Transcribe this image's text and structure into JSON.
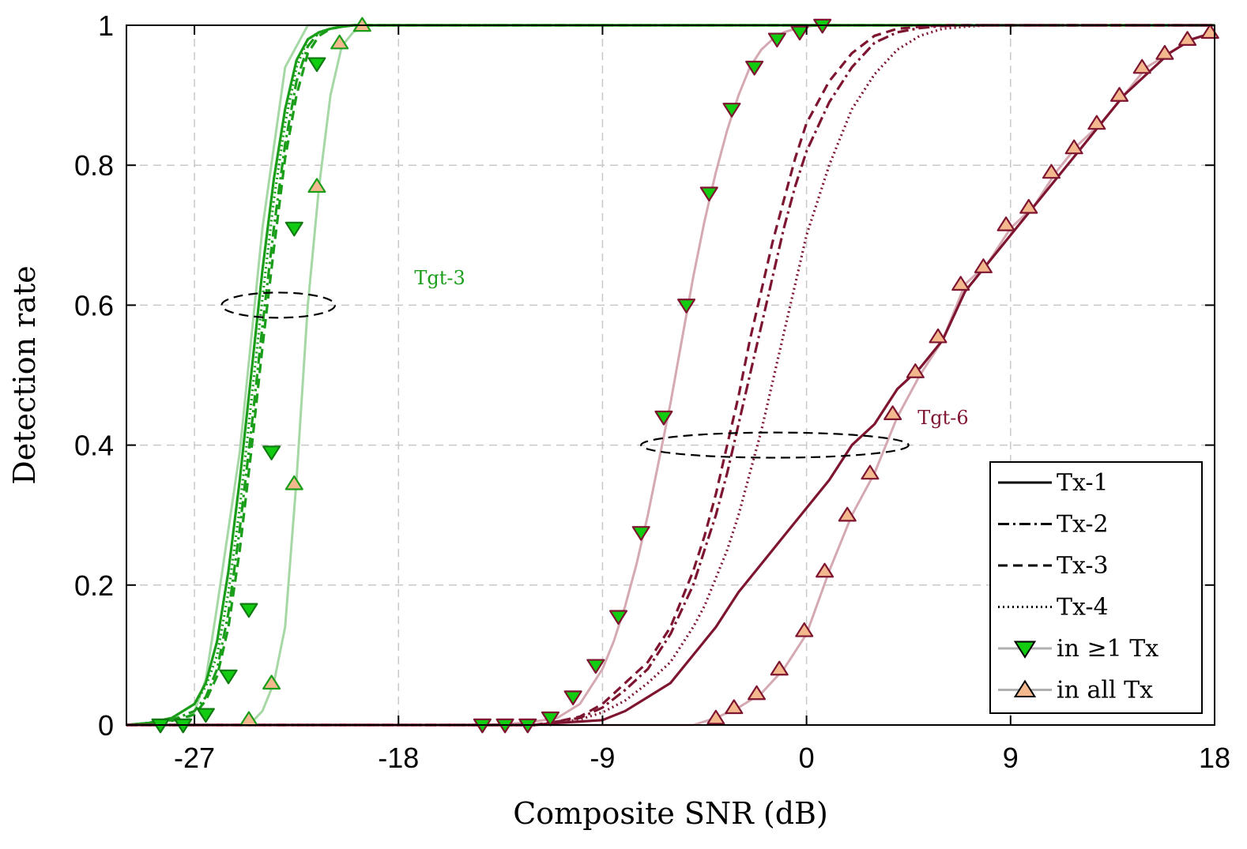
{
  "chart_data": {
    "type": "line",
    "title": "",
    "xlabel": "Composite SNR (dB)",
    "ylabel": "Detection rate",
    "xlim": [
      -30,
      18
    ],
    "ylim": [
      0,
      1
    ],
    "xticks": [
      -27,
      -18,
      -9,
      0,
      9,
      18
    ],
    "yticks": [
      0,
      0.2,
      0.4,
      0.6,
      0.8,
      1
    ],
    "xtick_labels": [
      "-27",
      "-18",
      "-9",
      "0",
      "9",
      "18"
    ],
    "ytick_labels": [
      "0",
      "0.2",
      "0.4",
      "0.6",
      "0.8",
      "1"
    ],
    "grid": true,
    "colors": {
      "tgt3": "#1a9e1a",
      "tgt3_light": "#a6d8a6",
      "tgt6": "#7e1530",
      "tgt6_light": "#d4a9b2",
      "marker_down_fill": "#11cc11",
      "marker_up_fill": "#f4b88e"
    },
    "annotations": [
      {
        "text": "Tgt-3",
        "x": -17.3,
        "y": 0.63,
        "color": "#1a9e1a"
      },
      {
        "text": "Tgt-6",
        "x": 4.9,
        "y": 0.43,
        "color": "#7e1530"
      }
    ],
    "ellipses": [
      {
        "cx": -23.3,
        "cy": 0.6,
        "rx": 2.5,
        "ry": 0.018
      },
      {
        "cx": -1.4,
        "cy": 0.4,
        "rx": 5.9,
        "ry": 0.018
      }
    ],
    "legend": {
      "position": "bottom-right",
      "entries": [
        {
          "label": "Tx-1",
          "style": "solid"
        },
        {
          "label": "Tx-2",
          "style": "dashdot"
        },
        {
          "label": "Tx-3",
          "style": "dashed"
        },
        {
          "label": "Tx-4",
          "style": "dotted"
        },
        {
          "label": "in ≥1 Tx",
          "style": "marker-down"
        },
        {
          "label": "in all Tx",
          "style": "marker-up"
        }
      ]
    },
    "series": [
      {
        "name": "Tgt-3 Tx-1",
        "group": "tgt3",
        "style": "solid",
        "x": [
          -30,
          -29,
          -28,
          -27,
          -26.5,
          -26,
          -25.5,
          -25,
          -24.5,
          -24,
          -23.5,
          -23,
          -22.5,
          -22,
          -21.5,
          -21,
          -20.5,
          -20,
          -19,
          -18,
          18
        ],
        "y": [
          0,
          0.003,
          0.01,
          0.03,
          0.06,
          0.12,
          0.22,
          0.35,
          0.5,
          0.65,
          0.78,
          0.88,
          0.95,
          0.98,
          0.99,
          0.995,
          0.998,
          1,
          1,
          1,
          1
        ]
      },
      {
        "name": "Tgt-3 Tx-2",
        "group": "tgt3",
        "style": "dashdot",
        "x": [
          -30,
          -29,
          -28,
          -27,
          -26.5,
          -26,
          -25.5,
          -25,
          -24.5,
          -24,
          -23.5,
          -23,
          -22.5,
          -22,
          -21.5,
          -21,
          -20.5,
          -20,
          -19,
          -18,
          18
        ],
        "y": [
          0,
          0.002,
          0.007,
          0.02,
          0.04,
          0.08,
          0.16,
          0.28,
          0.42,
          0.57,
          0.71,
          0.83,
          0.92,
          0.97,
          0.99,
          0.995,
          0.998,
          1,
          1,
          1,
          1
        ]
      },
      {
        "name": "Tgt-3 Tx-3",
        "group": "tgt3",
        "style": "dashed",
        "x": [
          -30,
          -29,
          -28,
          -27,
          -26.5,
          -26,
          -25.5,
          -25,
          -24.5,
          -24,
          -23.5,
          -23,
          -22.5,
          -22,
          -21.5,
          -21,
          -20.5,
          -20,
          -19,
          -18,
          18
        ],
        "y": [
          0,
          0.002,
          0.006,
          0.015,
          0.035,
          0.07,
          0.14,
          0.25,
          0.39,
          0.54,
          0.68,
          0.81,
          0.9,
          0.96,
          0.985,
          0.995,
          0.998,
          1,
          1,
          1,
          1
        ]
      },
      {
        "name": "Tgt-3 Tx-4",
        "group": "tgt3",
        "style": "dotted",
        "x": [
          -30,
          -29,
          -28,
          -27,
          -26.5,
          -26,
          -25.5,
          -25,
          -24.5,
          -24,
          -23.5,
          -23,
          -22.5,
          -22,
          -21.5,
          -21,
          -20.5,
          -20,
          -19,
          -18,
          18
        ],
        "y": [
          0,
          0.003,
          0.01,
          0.03,
          0.055,
          0.1,
          0.19,
          0.31,
          0.46,
          0.61,
          0.75,
          0.86,
          0.94,
          0.98,
          0.99,
          0.995,
          0.998,
          1,
          1,
          1,
          1
        ]
      },
      {
        "name": "Tgt-3 in ≥1 Tx",
        "group": "tgt3_light",
        "style": "solid",
        "marker": "down",
        "x": [
          -28.5,
          -27.5,
          -27,
          -26.5,
          -26,
          -25,
          -24,
          -23,
          -22,
          -21,
          -20
        ],
        "y": [
          0,
          0,
          0.02,
          0.065,
          0.17,
          0.39,
          0.71,
          0.94,
          1,
          1,
          1
        ],
        "marker_x": [
          -28.5,
          -27.5,
          -26.5,
          -25.5,
          -24.6,
          -23.6,
          -22.6,
          -21.6
        ],
        "marker_y": [
          0,
          0,
          0.015,
          0.07,
          0.165,
          0.39,
          0.71,
          0.945
        ]
      },
      {
        "name": "Tgt-3 in all Tx",
        "group": "tgt3_light",
        "style": "solid",
        "marker": "up",
        "x": [
          -30,
          -25,
          -24.5,
          -24,
          -23.5,
          -23,
          -22.5,
          -22,
          -21.5,
          -21,
          -20.5,
          -20,
          -19.5,
          -19,
          18
        ],
        "y": [
          0,
          0,
          0.003,
          0.02,
          0.06,
          0.14,
          0.35,
          0.6,
          0.77,
          0.9,
          0.97,
          0.99,
          1,
          1,
          1
        ],
        "marker_x": [
          -24.6,
          -23.6,
          -22.6,
          -21.6,
          -20.6,
          -19.6
        ],
        "marker_y": [
          0.008,
          0.06,
          0.345,
          0.77,
          0.975,
          1
        ]
      },
      {
        "name": "Tgt-6 Tx-1",
        "group": "tgt6",
        "style": "solid",
        "x": [
          -30,
          -12,
          -11,
          -10,
          -9,
          -8,
          -7,
          -6,
          -5,
          -4,
          -3,
          -2,
          -1,
          0,
          1,
          2,
          3,
          4,
          5,
          6,
          7,
          8,
          9,
          10,
          11,
          12,
          13,
          14,
          15,
          16,
          17,
          18
        ],
        "y": [
          0,
          0,
          0.003,
          0.005,
          0.007,
          0.02,
          0.04,
          0.06,
          0.1,
          0.14,
          0.19,
          0.23,
          0.27,
          0.31,
          0.35,
          0.4,
          0.43,
          0.48,
          0.51,
          0.55,
          0.62,
          0.66,
          0.7,
          0.74,
          0.78,
          0.82,
          0.86,
          0.9,
          0.93,
          0.96,
          0.98,
          0.99
        ]
      },
      {
        "name": "Tgt-6 Tx-2",
        "group": "tgt6",
        "style": "dashdot",
        "x": [
          -30,
          -12,
          -11,
          -10,
          -9,
          -8,
          -7,
          -6,
          -5,
          -4.5,
          -4,
          -3.5,
          -3,
          -2.5,
          -2,
          -1.5,
          -1,
          -0.5,
          0,
          1,
          2,
          3,
          4,
          5,
          6,
          7,
          8,
          18
        ],
        "y": [
          0,
          0,
          0.005,
          0.01,
          0.025,
          0.05,
          0.08,
          0.13,
          0.2,
          0.25,
          0.3,
          0.36,
          0.43,
          0.5,
          0.57,
          0.64,
          0.71,
          0.77,
          0.82,
          0.89,
          0.94,
          0.975,
          0.99,
          0.996,
          0.999,
          1,
          1,
          1
        ]
      },
      {
        "name": "Tgt-6 Tx-3",
        "group": "tgt6",
        "style": "dashed",
        "x": [
          -30,
          -12,
          -11,
          -10,
          -9,
          -8,
          -7,
          -6,
          -5,
          -4.5,
          -4,
          -3.5,
          -3,
          -2.5,
          -2,
          -1.5,
          -1,
          -0.5,
          0,
          1,
          2,
          3,
          4,
          5,
          6,
          7,
          8,
          18
        ],
        "y": [
          0,
          0,
          0.005,
          0.012,
          0.03,
          0.06,
          0.09,
          0.14,
          0.22,
          0.27,
          0.33,
          0.4,
          0.47,
          0.55,
          0.62,
          0.69,
          0.75,
          0.81,
          0.86,
          0.92,
          0.96,
          0.985,
          0.995,
          0.998,
          1,
          1,
          1,
          1
        ]
      },
      {
        "name": "Tgt-6 Tx-4",
        "group": "tgt6",
        "style": "dotted",
        "x": [
          -30,
          -12,
          -11,
          -10,
          -9,
          -8,
          -7,
          -6,
          -5,
          -4.5,
          -4,
          -3.5,
          -3,
          -2.5,
          -2,
          -1.5,
          -1,
          -0.5,
          0,
          1,
          2,
          3,
          4,
          5,
          6,
          7,
          8,
          9,
          18
        ],
        "y": [
          0,
          0,
          0.003,
          0.008,
          0.018,
          0.035,
          0.06,
          0.09,
          0.14,
          0.17,
          0.21,
          0.25,
          0.3,
          0.36,
          0.42,
          0.49,
          0.56,
          0.63,
          0.7,
          0.8,
          0.88,
          0.93,
          0.965,
          0.985,
          0.995,
          0.998,
          1,
          1,
          1
        ]
      },
      {
        "name": "Tgt-6 in ≥1 Tx",
        "group": "tgt6_light",
        "style": "solid",
        "marker": "down",
        "x": [
          -30,
          -14,
          -13,
          -12,
          -11,
          -10,
          -9,
          -8.5,
          -8,
          -7.5,
          -7,
          -6.5,
          -6,
          -5.5,
          -5,
          -4.5,
          -4,
          -3.5,
          -3,
          -2.5,
          -2,
          -1.5,
          -1,
          -0.5,
          0,
          0.5,
          1,
          2,
          18
        ],
        "y": [
          0,
          0,
          0.002,
          0.005,
          0.01,
          0.03,
          0.08,
          0.12,
          0.17,
          0.23,
          0.3,
          0.38,
          0.46,
          0.55,
          0.64,
          0.72,
          0.79,
          0.85,
          0.9,
          0.94,
          0.965,
          0.98,
          0.99,
          0.995,
          0.998,
          1,
          1,
          1,
          1
        ]
      },
      {
        "name": "Tgt-6 in all Tx",
        "group": "tgt6_light",
        "style": "solid",
        "marker": "up",
        "x": [
          -30,
          -5,
          -4,
          -3,
          -2,
          -1,
          0,
          1,
          2,
          3,
          4,
          5,
          6,
          7,
          8,
          9,
          10,
          11,
          12,
          13,
          14,
          15,
          16,
          17,
          18
        ],
        "y": [
          0,
          0,
          0.01,
          0.025,
          0.045,
          0.08,
          0.13,
          0.22,
          0.3,
          0.36,
          0.44,
          0.5,
          0.55,
          0.63,
          0.66,
          0.71,
          0.74,
          0.79,
          0.83,
          0.86,
          0.9,
          0.94,
          0.96,
          0.98,
          0.99
        ],
        "marker_x": [
          -4,
          -3.2,
          -2.2,
          -1.2,
          -0.1,
          0.8,
          1.8,
          2.8,
          3.8,
          4.8,
          5.8,
          6.8,
          7.8,
          8.8,
          9.8,
          10.8,
          11.8,
          12.8,
          13.8,
          14.8,
          15.8,
          16.8,
          17.8
        ],
        "marker_y": [
          0.01,
          0.025,
          0.045,
          0.08,
          0.135,
          0.22,
          0.3,
          0.36,
          0.445,
          0.505,
          0.555,
          0.63,
          0.655,
          0.715,
          0.74,
          0.79,
          0.825,
          0.86,
          0.9,
          0.94,
          0.96,
          0.98,
          0.99
        ]
      },
      {
        "name": "Tgt-6 in ≥1 Tx markers",
        "group": "tgt6_light",
        "style": "none",
        "marker": "down",
        "x": [],
        "y": [],
        "marker_x": [
          -14.3,
          -13.3,
          -12.3,
          -11.3,
          -10.3,
          -9.3,
          -8.3,
          -7.3,
          -6.3,
          -5.3,
          -4.3,
          -3.3,
          -2.3,
          -1.3,
          -0.3,
          0.7
        ],
        "marker_y": [
          0,
          0,
          0,
          0.01,
          0.04,
          0.085,
          0.155,
          0.275,
          0.44,
          0.6,
          0.76,
          0.88,
          0.94,
          0.98,
          0.99,
          1
        ]
      }
    ]
  }
}
